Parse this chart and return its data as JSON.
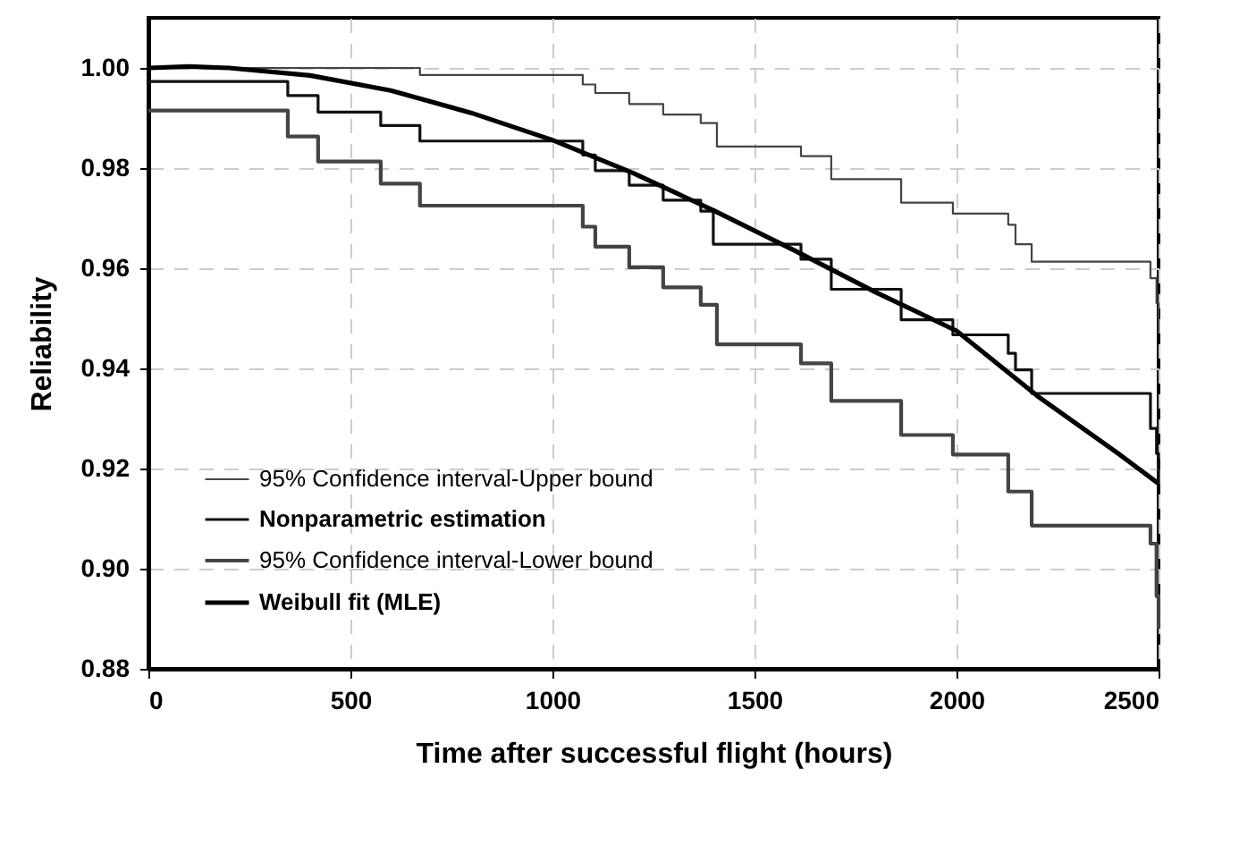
{
  "chart_data": {
    "type": "line",
    "xlabel": "Time after successful flight (hours)",
    "ylabel": "Reliability",
    "xlim": [
      0,
      2500
    ],
    "xticks": [
      0,
      500,
      1000,
      1500,
      2000,
      2500
    ],
    "ylim": [
      0.88,
      1.01
    ],
    "yticks": [
      0.88,
      {
        "value": 0.9,
        "label": "0.90"
      },
      0.92,
      0.94,
      0.96,
      0.98,
      {
        "value": 1.0,
        "label": "1.00"
      }
    ],
    "grid": true,
    "legend": "bottom left",
    "marker": "none",
    "series": [
      {
        "name": "95% Confidence interval-Upper bound",
        "type": "step",
        "color": "#444444",
        "x": [
          0,
          672,
          1075,
          1106,
          1190,
          1274,
          1367,
          1407,
          1615,
          1690,
          1863,
          1991,
          2128,
          2146,
          2186,
          2480,
          2495,
          2500
        ],
        "values": [
          1.0,
          0.9986,
          0.9967,
          0.995,
          0.9928,
          0.9907,
          0.989,
          0.9843,
          0.9824,
          0.9778,
          0.9731,
          0.9709,
          0.9687,
          0.9648,
          0.9613,
          0.958,
          0.953,
          0.947
        ]
      },
      {
        "name": "Nonparametric estimation",
        "type": "step",
        "color": "#111111",
        "x": [
          0,
          345,
          420,
          575,
          672,
          1075,
          1106,
          1190,
          1274,
          1367,
          1398,
          1615,
          1690,
          1863,
          1991,
          2128,
          2146,
          2186,
          2480,
          2495,
          2500
        ],
        "values": [
          0.9973,
          0.9945,
          0.9912,
          0.9885,
          0.9854,
          0.9826,
          0.9795,
          0.9766,
          0.9736,
          0.9714,
          0.9648,
          0.9618,
          0.9558,
          0.9497,
          0.9467,
          0.943,
          0.9397,
          0.935,
          0.928,
          0.923,
          0.917
        ]
      },
      {
        "name": "95% Confidence interval-Lower bound",
        "type": "step",
        "color": "#444444",
        "x": [
          0,
          345,
          420,
          575,
          672,
          1075,
          1106,
          1190,
          1274,
          1367,
          1407,
          1615,
          1690,
          1863,
          1991,
          2128,
          2186,
          2480,
          2495,
          2500
        ],
        "values": [
          0.9915,
          0.9863,
          0.9813,
          0.9769,
          0.9725,
          0.9683,
          0.9643,
          0.9602,
          0.9562,
          0.9527,
          0.9448,
          0.941,
          0.9335,
          0.9267,
          0.9228,
          0.9154,
          0.9086,
          0.905,
          0.8945,
          0.888
        ]
      },
      {
        "name": "Weibull fit (MLE)",
        "type": "line",
        "color": "#000000",
        "x": [
          0,
          100,
          200,
          400,
          600,
          800,
          1000,
          1200,
          1400,
          1600,
          1800,
          2000,
          2200,
          2400,
          2500
        ],
        "values": [
          1.0,
          1.0003,
          1.0,
          0.9985,
          0.9955,
          0.991,
          0.9856,
          0.979,
          0.9715,
          0.9635,
          0.9552,
          0.9475,
          0.9345,
          0.923,
          0.917
        ]
      }
    ]
  }
}
